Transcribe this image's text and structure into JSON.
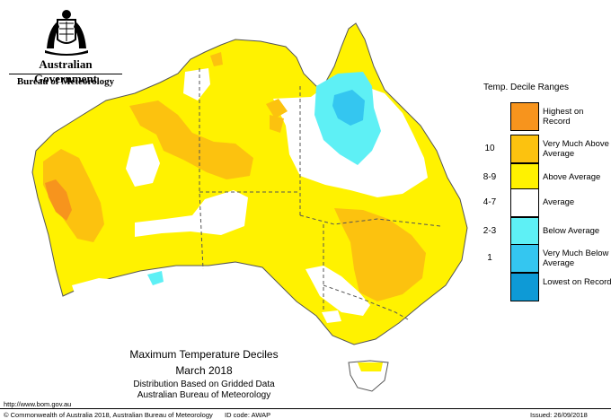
{
  "branding": {
    "government": "Australian Government",
    "bureau": "Bureau of Meteorology"
  },
  "legend": {
    "title": "Temp. Decile Ranges",
    "items": [
      {
        "code": "",
        "label": "Highest on Record",
        "color": "#f7941d"
      },
      {
        "code": "10",
        "label": "Very Much Above Average",
        "color": "#fcc20f"
      },
      {
        "code": "8-9",
        "label": "Above Average",
        "color": "#fff200"
      },
      {
        "code": "4-7",
        "label": "Average",
        "color": "#ffffff"
      },
      {
        "code": "2-3",
        "label": "Below Average",
        "color": "#5ef0f5"
      },
      {
        "code": "1",
        "label": "Very Much Below Average",
        "color": "#34c6f0"
      },
      {
        "code": "",
        "label": "Lowest on Record",
        "color": "#0e9ad6"
      }
    ]
  },
  "map_title": {
    "line1": "Maximum Temperature Deciles",
    "line2": "March 2018",
    "line3": "Distribution Based on Gridded Data",
    "line4": "Australian Bureau of Meteorology"
  },
  "url": "http://www.bom.gov.au",
  "footer": {
    "copyright": "© Commonwealth of Australia 2018, Australian Bureau of Meteorology",
    "id_code": "ID code: AWAP",
    "issued": "Issued: 26/09/2018"
  }
}
